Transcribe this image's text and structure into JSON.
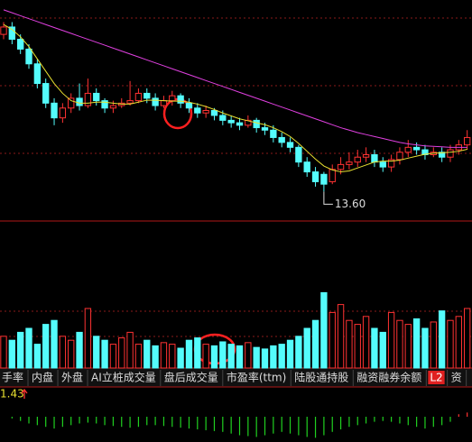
{
  "chart_data": {
    "type": "candlestick",
    "up_color": "#ff3232",
    "down_color": "#54fcfc",
    "ylim": [
      13.0,
      17.5
    ],
    "open": [
      16.8,
      16.95,
      16.7,
      16.5,
      16.2,
      15.8,
      15.4,
      15.1,
      15.3,
      15.5,
      15.35,
      15.6,
      15.45,
      15.3,
      15.35,
      15.4,
      15.45,
      15.6,
      15.5,
      15.35,
      15.45,
      15.55,
      15.4,
      15.3,
      15.2,
      15.25,
      15.15,
      15.05,
      15.0,
      14.95,
      15.05,
      14.9,
      14.85,
      14.7,
      14.6,
      14.5,
      14.2,
      14.0,
      13.95,
      13.8,
      14.05,
      14.15,
      14.2,
      14.3,
      14.35,
      14.2,
      14.1,
      14.25,
      14.4,
      14.5,
      14.45,
      14.35,
      14.4,
      14.3,
      14.45,
      14.55
    ],
    "close": [
      16.95,
      16.7,
      16.5,
      16.2,
      15.8,
      15.4,
      15.1,
      15.3,
      15.5,
      15.35,
      15.6,
      15.45,
      15.3,
      15.35,
      15.4,
      15.45,
      15.6,
      15.5,
      15.35,
      15.45,
      15.55,
      15.4,
      15.3,
      15.2,
      15.25,
      15.15,
      15.05,
      15.0,
      14.95,
      15.05,
      14.9,
      14.85,
      14.7,
      14.6,
      14.5,
      14.2,
      14.0,
      13.8,
      13.75,
      14.05,
      14.15,
      14.2,
      14.3,
      14.35,
      14.2,
      14.1,
      14.25,
      14.4,
      14.5,
      14.45,
      14.35,
      14.4,
      14.3,
      14.45,
      14.55,
      14.7
    ],
    "high": [
      17.05,
      17.05,
      16.8,
      16.6,
      16.3,
      15.9,
      15.5,
      15.4,
      15.6,
      15.8,
      15.9,
      15.7,
      15.5,
      15.45,
      15.5,
      15.85,
      15.7,
      15.7,
      15.6,
      15.55,
      15.65,
      15.6,
      15.5,
      15.4,
      15.35,
      15.3,
      15.25,
      15.15,
      15.1,
      15.15,
      15.1,
      15.0,
      14.95,
      14.8,
      14.7,
      14.55,
      14.3,
      14.1,
      14.0,
      14.15,
      14.3,
      14.4,
      14.45,
      14.5,
      14.45,
      14.3,
      14.35,
      14.5,
      14.65,
      14.6,
      14.55,
      14.5,
      14.5,
      14.55,
      14.65,
      14.85
    ],
    "low": [
      16.7,
      16.6,
      16.4,
      16.1,
      15.7,
      15.3,
      14.95,
      15.0,
      15.2,
      15.25,
      15.3,
      15.35,
      15.2,
      15.2,
      15.3,
      15.35,
      15.4,
      15.4,
      15.25,
      15.3,
      15.35,
      15.3,
      15.2,
      15.1,
      15.1,
      15.05,
      14.95,
      14.9,
      14.85,
      14.9,
      14.8,
      14.75,
      14.6,
      14.5,
      14.4,
      14.1,
      13.9,
      13.7,
      13.6,
      13.75,
      13.95,
      14.05,
      14.1,
      14.2,
      14.1,
      14.0,
      14.0,
      14.15,
      14.3,
      14.35,
      14.25,
      14.3,
      14.2,
      14.2,
      14.35,
      14.45
    ],
    "lines": [
      {
        "color": "#e040e0",
        "values": [
          17.3,
          17.24,
          17.18,
          17.12,
          17.06,
          17.0,
          16.94,
          16.88,
          16.82,
          16.76,
          16.7,
          16.64,
          16.58,
          16.52,
          16.46,
          16.4,
          16.34,
          16.28,
          16.22,
          16.16,
          16.1,
          16.04,
          15.98,
          15.92,
          15.86,
          15.8,
          15.74,
          15.68,
          15.62,
          15.56,
          15.5,
          15.44,
          15.38,
          15.32,
          15.26,
          15.2,
          15.14,
          15.08,
          15.02,
          14.96,
          14.9,
          14.85,
          14.8,
          14.76,
          14.72,
          14.68,
          14.64,
          14.6,
          14.57,
          14.55,
          14.53,
          14.52,
          14.51,
          14.5,
          14.5,
          14.5
        ]
      },
      {
        "color": "#e8e030",
        "values": [
          17.0,
          16.9,
          16.75,
          16.55,
          16.3,
          16.05,
          15.8,
          15.6,
          15.45,
          15.4,
          15.4,
          15.42,
          15.42,
          15.4,
          15.38,
          15.38,
          15.42,
          15.46,
          15.46,
          15.45,
          15.44,
          15.44,
          15.42,
          15.38,
          15.33,
          15.27,
          15.2,
          15.14,
          15.08,
          15.04,
          15.0,
          14.96,
          14.9,
          14.82,
          14.72,
          14.58,
          14.42,
          14.26,
          14.12,
          14.04,
          14.0,
          14.02,
          14.08,
          14.14,
          14.2,
          14.22,
          14.22,
          14.24,
          14.28,
          14.32,
          14.36,
          14.38,
          14.39,
          14.4,
          14.42,
          14.46
        ]
      }
    ],
    "low_label": "13.60",
    "low_index": 38,
    "volume": [
      40,
      35,
      45,
      50,
      30,
      55,
      60,
      40,
      35,
      45,
      75,
      40,
      35,
      30,
      38,
      45,
      30,
      35,
      28,
      32,
      30,
      25,
      35,
      38,
      30,
      28,
      33,
      30,
      28,
      32,
      26,
      24,
      28,
      30,
      35,
      40,
      50,
      60,
      95,
      70,
      80,
      60,
      55,
      65,
      50,
      45,
      70,
      60,
      55,
      62,
      50,
      58,
      72,
      60,
      65,
      75
    ],
    "vlim": [
      0,
      100
    ],
    "tabs": [
      "手率",
      "内盘",
      "外盘",
      "AI立桩成交量",
      "盘后成交量",
      "市盈率(ttm)",
      "陆股通持股",
      "融资融券余额",
      "L2",
      "资"
    ],
    "indicator_value": "1.43",
    "macd": [
      0,
      -0.02,
      -0.05,
      -0.08,
      -0.1,
      -0.12,
      -0.14,
      -0.12,
      -0.1,
      -0.08,
      -0.07,
      -0.08,
      -0.1,
      -0.11,
      -0.12,
      -0.13,
      -0.12,
      -0.1,
      -0.1,
      -0.11,
      -0.12,
      -0.13,
      -0.14,
      -0.15,
      -0.16,
      -0.17,
      -0.18,
      -0.2,
      -0.22,
      -0.23,
      -0.24,
      -0.22,
      -0.2,
      -0.18,
      -0.2,
      -0.22,
      -0.24,
      -0.25,
      -0.22,
      -0.18,
      -0.15,
      -0.12,
      -0.1,
      -0.08,
      -0.06,
      -0.05,
      -0.06,
      -0.08,
      -0.1,
      -0.12,
      -0.14,
      -0.12,
      -0.1,
      -0.06,
      0.03,
      0.05
    ],
    "macd_lim": [
      -0.3,
      0.3
    ]
  }
}
